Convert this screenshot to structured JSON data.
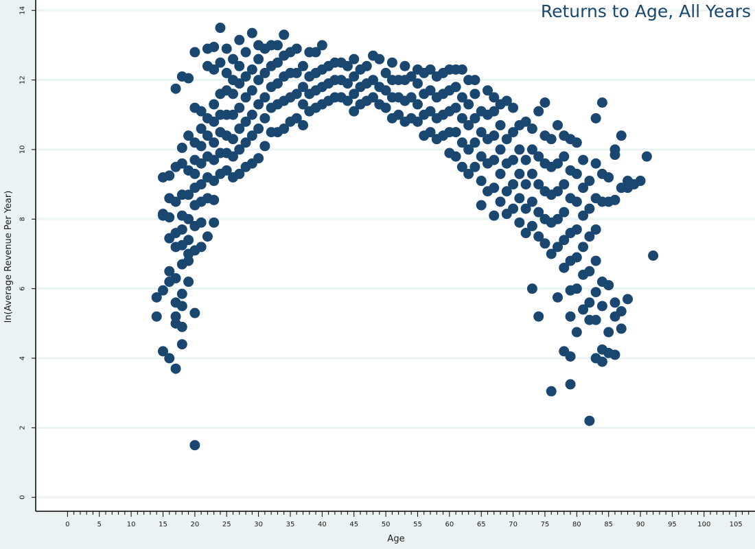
{
  "chart_data": {
    "type": "scatter",
    "title": "Returns to Age, All Years",
    "xlabel": "Age",
    "ylabel": "ln(Average Revenue Per Year)",
    "xlim": [
      -5,
      108
    ],
    "ylim": [
      -0.4,
      14.3
    ],
    "x_ticks": [
      0,
      5,
      10,
      15,
      20,
      25,
      30,
      35,
      40,
      45,
      50,
      55,
      60,
      65,
      70,
      75,
      80,
      85,
      90,
      95,
      100,
      105
    ],
    "y_ticks": [
      0,
      2,
      4,
      6,
      8,
      10,
      12,
      14
    ],
    "grid": "horizontal",
    "marker_color": "#1a476f",
    "background": "#ffffff",
    "outer_background": "#eaf2f3",
    "points": [
      [
        14,
        5.75
      ],
      [
        14,
        5.2
      ],
      [
        15,
        5.95
      ],
      [
        15,
        8.1
      ],
      [
        15,
        8.15
      ],
      [
        15,
        9.2
      ],
      [
        15,
        4.2
      ],
      [
        16,
        6.5
      ],
      [
        16,
        6.2
      ],
      [
        16,
        7.45
      ],
      [
        16,
        8.6
      ],
      [
        16,
        4.0
      ],
      [
        16,
        9.25
      ],
      [
        16,
        8.05
      ],
      [
        17,
        3.7
      ],
      [
        17,
        5.0
      ],
      [
        17,
        5.2
      ],
      [
        17,
        5.6
      ],
      [
        17,
        6.3
      ],
      [
        17,
        7.2
      ],
      [
        17,
        7.6
      ],
      [
        17,
        8.5
      ],
      [
        17,
        9.5
      ],
      [
        17,
        11.75
      ],
      [
        18,
        4.4
      ],
      [
        18,
        4.9
      ],
      [
        18,
        5.5
      ],
      [
        18,
        5.85
      ],
      [
        18,
        6.7
      ],
      [
        18,
        7.25
      ],
      [
        18,
        7.7
      ],
      [
        18,
        8.1
      ],
      [
        18,
        8.7
      ],
      [
        18,
        9.6
      ],
      [
        18,
        10.05
      ],
      [
        18,
        12.1
      ],
      [
        19,
        6.2
      ],
      [
        19,
        6.8
      ],
      [
        19,
        7.0
      ],
      [
        19,
        7.4
      ],
      [
        19,
        8.0
      ],
      [
        19,
        8.7
      ],
      [
        19,
        9.4
      ],
      [
        19,
        10.4
      ],
      [
        19,
        12.05
      ],
      [
        20,
        1.5
      ],
      [
        20,
        5.3
      ],
      [
        20,
        7.1
      ],
      [
        20,
        7.8
      ],
      [
        20,
        8.4
      ],
      [
        20,
        8.9
      ],
      [
        20,
        9.3
      ],
      [
        20,
        9.7
      ],
      [
        20,
        10.2
      ],
      [
        20,
        11.2
      ],
      [
        20,
        12.8
      ],
      [
        21,
        7.2
      ],
      [
        21,
        7.9
      ],
      [
        21,
        8.5
      ],
      [
        21,
        9.0
      ],
      [
        21,
        9.6
      ],
      [
        21,
        10.1
      ],
      [
        21,
        10.6
      ],
      [
        21,
        11.1
      ],
      [
        22,
        7.5
      ],
      [
        22,
        8.6
      ],
      [
        22,
        9.2
      ],
      [
        22,
        9.8
      ],
      [
        22,
        10.4
      ],
      [
        22,
        10.9
      ],
      [
        22,
        12.4
      ],
      [
        22,
        12.9
      ],
      [
        23,
        7.9
      ],
      [
        23,
        8.55
      ],
      [
        23,
        9.1
      ],
      [
        23,
        9.7
      ],
      [
        23,
        10.2
      ],
      [
        23,
        10.8
      ],
      [
        23,
        11.3
      ],
      [
        23,
        12.3
      ],
      [
        23,
        12.95
      ],
      [
        24,
        9.3
      ],
      [
        24,
        9.9
      ],
      [
        24,
        10.5
      ],
      [
        24,
        11.0
      ],
      [
        24,
        11.6
      ],
      [
        24,
        12.5
      ],
      [
        24,
        13.5
      ],
      [
        25,
        9.4
      ],
      [
        25,
        9.9
      ],
      [
        25,
        10.4
      ],
      [
        25,
        11.0
      ],
      [
        25,
        11.7
      ],
      [
        25,
        12.2
      ],
      [
        25,
        12.9
      ],
      [
        26,
        9.2
      ],
      [
        26,
        9.8
      ],
      [
        26,
        10.3
      ],
      [
        26,
        11.0
      ],
      [
        26,
        11.6
      ],
      [
        26,
        12.0
      ],
      [
        26,
        12.6
      ],
      [
        27,
        9.3
      ],
      [
        27,
        10.0
      ],
      [
        27,
        10.6
      ],
      [
        27,
        11.2
      ],
      [
        27,
        11.9
      ],
      [
        27,
        12.4
      ],
      [
        27,
        13.15
      ],
      [
        28,
        9.5
      ],
      [
        28,
        10.2
      ],
      [
        28,
        10.8
      ],
      [
        28,
        11.5
      ],
      [
        28,
        12.1
      ],
      [
        28,
        12.8
      ],
      [
        29,
        9.6
      ],
      [
        29,
        10.4
      ],
      [
        29,
        11.0
      ],
      [
        29,
        11.7
      ],
      [
        29,
        12.3
      ],
      [
        29,
        13.35
      ],
      [
        30,
        9.75
      ],
      [
        30,
        10.6
      ],
      [
        30,
        11.3
      ],
      [
        30,
        12.0
      ],
      [
        30,
        12.6
      ],
      [
        30,
        13.0
      ],
      [
        31,
        10.1
      ],
      [
        31,
        10.9
      ],
      [
        31,
        11.5
      ],
      [
        31,
        12.2
      ],
      [
        31,
        12.9
      ],
      [
        32,
        10.5
      ],
      [
        32,
        11.2
      ],
      [
        32,
        11.8
      ],
      [
        32,
        12.4
      ],
      [
        32,
        13.0
      ],
      [
        33,
        10.5
      ],
      [
        33,
        11.3
      ],
      [
        33,
        11.9
      ],
      [
        33,
        12.5
      ],
      [
        33,
        13.0
      ],
      [
        34,
        10.6
      ],
      [
        34,
        11.4
      ],
      [
        34,
        12.1
      ],
      [
        34,
        12.7
      ],
      [
        34,
        13.3
      ],
      [
        35,
        10.8
      ],
      [
        35,
        11.5
      ],
      [
        35,
        12.2
      ],
      [
        35,
        12.8
      ],
      [
        36,
        10.9
      ],
      [
        36,
        11.6
      ],
      [
        36,
        12.2
      ],
      [
        36,
        12.9
      ],
      [
        37,
        10.7
      ],
      [
        37,
        11.3
      ],
      [
        37,
        11.8
      ],
      [
        37,
        12.4
      ],
      [
        38,
        11.1
      ],
      [
        38,
        11.6
      ],
      [
        38,
        12.1
      ],
      [
        38,
        12.8
      ],
      [
        39,
        11.2
      ],
      [
        39,
        11.7
      ],
      [
        39,
        12.2
      ],
      [
        39,
        12.8
      ],
      [
        40,
        11.3
      ],
      [
        40,
        11.8
      ],
      [
        40,
        12.3
      ],
      [
        40,
        13.0
      ],
      [
        41,
        11.4
      ],
      [
        41,
        11.9
      ],
      [
        41,
        12.4
      ],
      [
        42,
        11.5
      ],
      [
        42,
        12.0
      ],
      [
        42,
        12.5
      ],
      [
        43,
        11.5
      ],
      [
        43,
        12.0
      ],
      [
        43,
        12.5
      ],
      [
        44,
        11.4
      ],
      [
        44,
        11.9
      ],
      [
        44,
        12.4
      ],
      [
        45,
        11.1
      ],
      [
        45,
        11.6
      ],
      [
        45,
        12.1
      ],
      [
        45,
        12.6
      ],
      [
        46,
        11.3
      ],
      [
        46,
        11.8
      ],
      [
        46,
        12.3
      ],
      [
        47,
        11.4
      ],
      [
        47,
        11.9
      ],
      [
        47,
        12.4
      ],
      [
        48,
        11.5
      ],
      [
        48,
        12.0
      ],
      [
        48,
        12.7
      ],
      [
        49,
        11.3
      ],
      [
        49,
        11.8
      ],
      [
        49,
        12.6
      ],
      [
        50,
        11.2
      ],
      [
        50,
        11.7
      ],
      [
        50,
        12.2
      ],
      [
        51,
        10.9
      ],
      [
        51,
        11.5
      ],
      [
        51,
        12.0
      ],
      [
        51,
        12.5
      ],
      [
        52,
        11.0
      ],
      [
        52,
        11.5
      ],
      [
        52,
        12.0
      ],
      [
        53,
        10.8
      ],
      [
        53,
        11.4
      ],
      [
        53,
        12.0
      ],
      [
        53,
        12.4
      ],
      [
        54,
        10.9
      ],
      [
        54,
        11.5
      ],
      [
        54,
        12.1
      ],
      [
        55,
        10.8
      ],
      [
        55,
        11.3
      ],
      [
        55,
        11.9
      ],
      [
        55,
        12.3
      ],
      [
        56,
        10.4
      ],
      [
        56,
        11.0
      ],
      [
        56,
        11.6
      ],
      [
        56,
        12.2
      ],
      [
        57,
        10.5
      ],
      [
        57,
        11.1
      ],
      [
        57,
        11.7
      ],
      [
        57,
        12.3
      ],
      [
        58,
        10.3
      ],
      [
        58,
        10.9
      ],
      [
        58,
        11.5
      ],
      [
        58,
        12.1
      ],
      [
        59,
        10.4
      ],
      [
        59,
        11.0
      ],
      [
        59,
        11.6
      ],
      [
        59,
        12.2
      ],
      [
        60,
        9.9
      ],
      [
        60,
        10.5
      ],
      [
        60,
        11.1
      ],
      [
        60,
        11.7
      ],
      [
        60,
        12.3
      ],
      [
        61,
        9.8
      ],
      [
        61,
        10.5
      ],
      [
        61,
        11.2
      ],
      [
        61,
        11.8
      ],
      [
        61,
        12.3
      ],
      [
        62,
        9.5
      ],
      [
        62,
        10.2
      ],
      [
        62,
        10.9
      ],
      [
        62,
        11.5
      ],
      [
        62,
        12.3
      ],
      [
        63,
        9.3
      ],
      [
        63,
        10.0
      ],
      [
        63,
        10.7
      ],
      [
        63,
        11.3
      ],
      [
        63,
        12.0
      ],
      [
        64,
        9.5
      ],
      [
        64,
        10.2
      ],
      [
        64,
        10.9
      ],
      [
        64,
        11.6
      ],
      [
        64,
        12.0
      ],
      [
        65,
        8.4
      ],
      [
        65,
        9.1
      ],
      [
        65,
        9.8
      ],
      [
        65,
        10.5
      ],
      [
        65,
        11.1
      ],
      [
        66,
        8.8
      ],
      [
        66,
        9.6
      ],
      [
        66,
        10.3
      ],
      [
        66,
        11.0
      ],
      [
        66,
        11.7
      ],
      [
        67,
        8.1
      ],
      [
        67,
        8.9
      ],
      [
        67,
        9.7
      ],
      [
        67,
        10.4
      ],
      [
        67,
        11.1
      ],
      [
        67,
        11.5
      ],
      [
        68,
        8.5
      ],
      [
        68,
        9.3
      ],
      [
        68,
        10.0
      ],
      [
        68,
        10.7
      ],
      [
        68,
        11.3
      ],
      [
        69,
        8.15
      ],
      [
        69,
        8.8
      ],
      [
        69,
        9.6
      ],
      [
        69,
        10.3
      ],
      [
        69,
        11.4
      ],
      [
        70,
        8.3
      ],
      [
        70,
        9.0
      ],
      [
        70,
        9.7
      ],
      [
        70,
        10.5
      ],
      [
        70,
        11.2
      ],
      [
        71,
        7.9
      ],
      [
        71,
        8.6
      ],
      [
        71,
        9.3
      ],
      [
        71,
        10.0
      ],
      [
        71,
        10.7
      ],
      [
        72,
        7.6
      ],
      [
        72,
        8.3
      ],
      [
        72,
        9.0
      ],
      [
        72,
        9.7
      ],
      [
        72,
        10.8
      ],
      [
        73,
        6.0
      ],
      [
        73,
        7.8
      ],
      [
        73,
        8.5
      ],
      [
        73,
        9.3
      ],
      [
        73,
        10.0
      ],
      [
        73,
        10.6
      ],
      [
        74,
        5.2
      ],
      [
        74,
        7.5
      ],
      [
        74,
        8.2
      ],
      [
        74,
        9.0
      ],
      [
        74,
        9.8
      ],
      [
        74,
        11.1
      ],
      [
        75,
        7.3
      ],
      [
        75,
        8.0
      ],
      [
        75,
        8.8
      ],
      [
        75,
        9.6
      ],
      [
        75,
        10.4
      ],
      [
        75,
        11.35
      ],
      [
        76,
        3.05
      ],
      [
        76,
        7.0
      ],
      [
        76,
        7.9
      ],
      [
        76,
        8.7
      ],
      [
        76,
        9.5
      ],
      [
        76,
        10.3
      ],
      [
        77,
        5.75
      ],
      [
        77,
        7.2
      ],
      [
        77,
        8.0
      ],
      [
        77,
        8.8
      ],
      [
        77,
        9.6
      ],
      [
        77,
        10.7
      ],
      [
        78,
        4.2
      ],
      [
        78,
        6.6
      ],
      [
        78,
        7.4
      ],
      [
        78,
        8.2
      ],
      [
        78,
        9.0
      ],
      [
        78,
        9.8
      ],
      [
        78,
        10.4
      ],
      [
        79,
        3.25
      ],
      [
        79,
        4.05
      ],
      [
        79,
        5.2
      ],
      [
        79,
        5.95
      ],
      [
        79,
        6.8
      ],
      [
        79,
        7.6
      ],
      [
        79,
        8.6
      ],
      [
        79,
        9.4
      ],
      [
        79,
        10.3
      ],
      [
        80,
        4.75
      ],
      [
        80,
        6.0
      ],
      [
        80,
        6.9
      ],
      [
        80,
        7.7
      ],
      [
        80,
        8.5
      ],
      [
        80,
        9.3
      ],
      [
        80,
        10.2
      ],
      [
        81,
        5.4
      ],
      [
        81,
        6.4
      ],
      [
        81,
        7.2
      ],
      [
        81,
        8.1
      ],
      [
        81,
        8.9
      ],
      [
        81,
        9.7
      ],
      [
        82,
        2.2
      ],
      [
        82,
        5.1
      ],
      [
        82,
        5.6
      ],
      [
        82,
        6.5
      ],
      [
        82,
        7.5
      ],
      [
        82,
        8.3
      ],
      [
        82,
        9.1
      ],
      [
        83,
        4.0
      ],
      [
        83,
        5.1
      ],
      [
        83,
        5.9
      ],
      [
        83,
        6.8
      ],
      [
        83,
        7.7
      ],
      [
        83,
        8.6
      ],
      [
        83,
        9.6
      ],
      [
        83,
        10.9
      ],
      [
        84,
        3.9
      ],
      [
        84,
        4.25
      ],
      [
        84,
        5.5
      ],
      [
        84,
        6.2
      ],
      [
        84,
        8.5
      ],
      [
        84,
        9.3
      ],
      [
        84,
        11.35
      ],
      [
        85,
        4.15
      ],
      [
        85,
        4.75
      ],
      [
        85,
        6.1
      ],
      [
        85,
        8.5
      ],
      [
        85,
        9.2
      ],
      [
        86,
        4.1
      ],
      [
        86,
        5.2
      ],
      [
        86,
        5.6
      ],
      [
        86,
        8.55
      ],
      [
        86,
        9.85
      ],
      [
        86,
        10.0
      ],
      [
        87,
        4.85
      ],
      [
        87,
        5.35
      ],
      [
        87,
        8.9
      ],
      [
        87,
        10.4
      ],
      [
        88,
        5.7
      ],
      [
        88,
        8.9
      ],
      [
        88,
        9.1
      ],
      [
        89,
        9.0
      ],
      [
        90,
        9.1
      ],
      [
        91,
        9.8
      ],
      [
        92,
        6.95
      ]
    ]
  }
}
